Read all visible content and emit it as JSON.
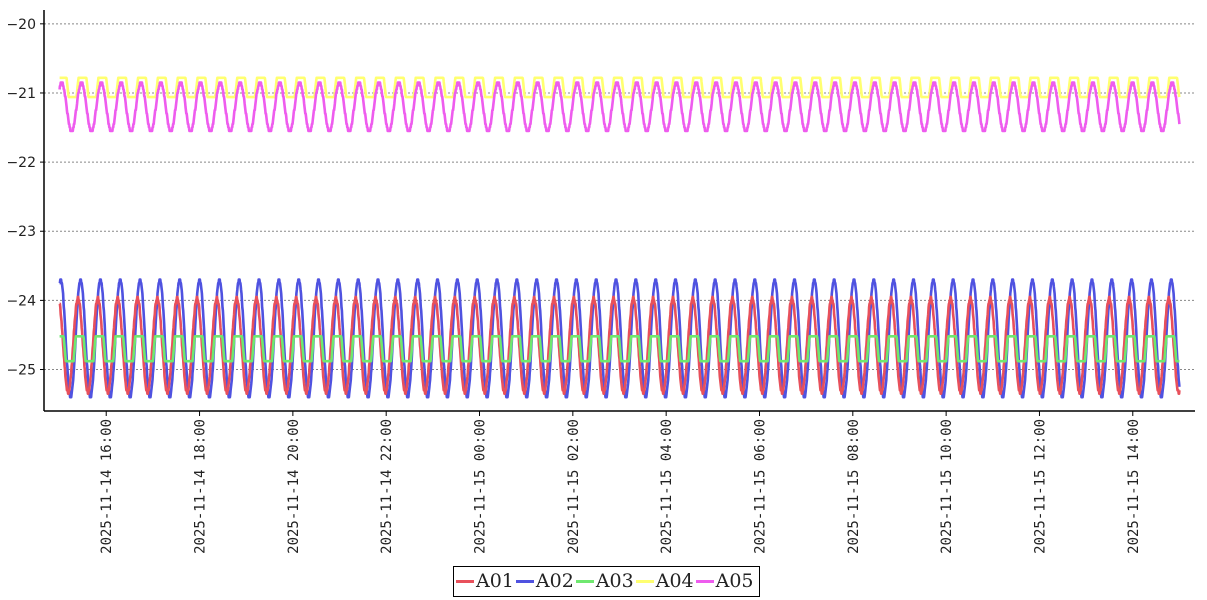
{
  "chart_data": {
    "type": "line",
    "title": "",
    "xlabel": "",
    "ylabel": "",
    "ylim": [
      -25.6,
      -19.8
    ],
    "xlim": [
      "2025-11-14 14:40",
      "2025-11-15 15:20"
    ],
    "yticks": [
      "-20",
      "-21",
      "-22",
      "-23",
      "-24",
      "-25"
    ],
    "xticks": [
      "2025-11-14 16:00",
      "2025-11-14 18:00",
      "2025-11-14 20:00",
      "2025-11-14 22:00",
      "2025-11-15 00:00",
      "2025-11-15 02:00",
      "2025-11-15 04:00",
      "2025-11-15 06:00",
      "2025-11-15 08:00",
      "2025-11-15 10:00",
      "2025-11-15 12:00",
      "2025-11-15 14:00"
    ],
    "grid": "horizontal dotted",
    "legend_position": "bottom-center",
    "x_start": "2025-11-14 15:00",
    "x_end": "2025-11-15 15:00",
    "oscillation_period_minutes": 25.5,
    "series": [
      {
        "name": "A01",
        "color": "#e8505b",
        "mean": -24.65,
        "amplitude": 0.68,
        "phase": 2.0,
        "shape": "sine"
      },
      {
        "name": "A02",
        "color": "#4f52e0",
        "mean": -24.55,
        "amplitude": 0.85,
        "phase": 1.2,
        "shape": "sine"
      },
      {
        "name": "A03",
        "color": "#6fe86f",
        "mean": -24.7,
        "amplitude": 0.18,
        "phase": 1.5,
        "shape": "square"
      },
      {
        "name": "A04",
        "color": "#ffff70",
        "mean": -20.92,
        "amplitude": 0.14,
        "phase": 0.6,
        "shape": "square"
      },
      {
        "name": "A05",
        "color": "#ee5cee",
        "mean": -21.2,
        "amplitude": 0.35,
        "phase": 0.9,
        "shape": "sine"
      }
    ]
  },
  "legend": {
    "items": [
      {
        "label": "A01",
        "color": "#e8505b"
      },
      {
        "label": "A02",
        "color": "#4f52e0"
      },
      {
        "label": "A03",
        "color": "#6fe86f"
      },
      {
        "label": "A04",
        "color": "#ffff70"
      },
      {
        "label": "A05",
        "color": "#ee5cee"
      }
    ]
  }
}
